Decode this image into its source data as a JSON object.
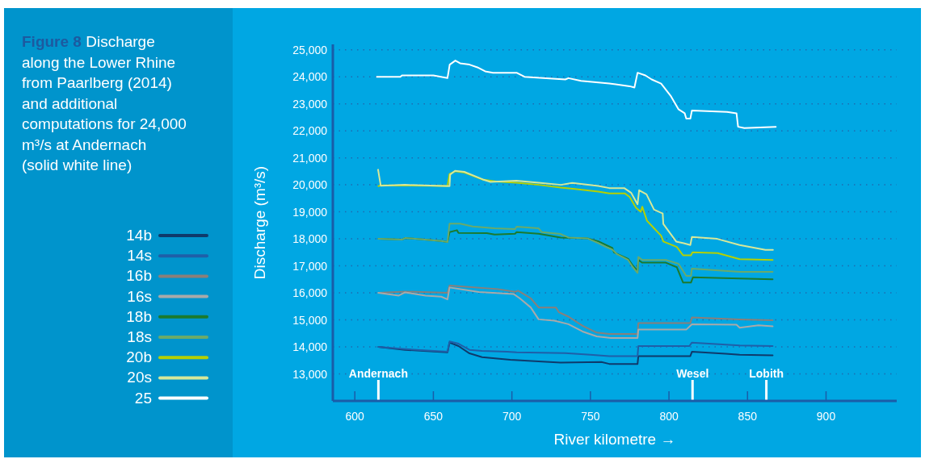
{
  "chart_data": {
    "type": "line",
    "title": "Figure 8",
    "subtitle": "Discharge along the Lower Rhine from Paarlberg (2014) and additional computations for 24,000 m³/s at Andernach (solid white line)",
    "xlabel": "River kilometre →",
    "ylabel": "Discharge (m³/s)",
    "xlim": [
      586,
      945
    ],
    "ylim": [
      12000,
      25200
    ],
    "xticks": [
      600,
      650,
      700,
      750,
      800,
      850,
      900
    ],
    "yticks": [
      {
        "value": 13000,
        "label": "13,000"
      },
      {
        "value": 14000,
        "label": "14,000"
      },
      {
        "value": 15000,
        "label": "15,000"
      },
      {
        "value": 16000,
        "label": "16,000"
      },
      {
        "value": 17000,
        "label": "17,000"
      },
      {
        "value": 18000,
        "label": "18,000"
      },
      {
        "value": 19000,
        "label": "19,000"
      },
      {
        "value": 20000,
        "label": "20,000"
      },
      {
        "value": 21000,
        "label": "21,000"
      },
      {
        "value": 22000,
        "label": "22,000"
      },
      {
        "value": 23000,
        "label": "23,000"
      },
      {
        "value": 24000,
        "label": "24,000"
      },
      {
        "value": 25000,
        "label": "25,000"
      }
    ],
    "grid": "y",
    "legend": "left",
    "line_style": "solid",
    "marker": "none",
    "ref_lines": [
      {
        "axis": "x",
        "value": 615,
        "label": "Andernach",
        "color": "#ffffff"
      },
      {
        "axis": "x",
        "value": 815,
        "label": "Wesel",
        "color": "#ffffff"
      },
      {
        "axis": "x",
        "value": 862,
        "label": "Lobith",
        "color": "#ffffff"
      }
    ],
    "series": [
      {
        "name": "14b",
        "color": "#0f3a6b",
        "x": [
          615,
          632,
          659,
          660.3,
          666,
          673,
          681,
          699,
          717,
          731,
          757,
          762,
          780,
          780.5,
          813.6,
          814.6,
          836,
          845,
          866
        ],
        "values": [
          14000,
          13890,
          13800,
          14160,
          14030,
          13760,
          13620,
          13520,
          13460,
          13420,
          13440,
          13370,
          13370,
          13660,
          13660,
          13820,
          13750,
          13710,
          13690
        ]
      },
      {
        "name": "14s",
        "color": "#1f5fa8",
        "x": [
          615,
          632,
          659,
          660.3,
          666,
          673,
          681,
          697,
          703,
          734,
          750,
          762,
          780,
          780.5,
          813,
          814.6,
          845,
          866
        ],
        "values": [
          14000,
          13920,
          13820,
          14200,
          14120,
          13890,
          13850,
          13820,
          13800,
          13770,
          13710,
          13660,
          13660,
          14030,
          14030,
          14160,
          14050,
          14030
        ]
      },
      {
        "name": "16b",
        "color": "#8a7f7a",
        "x": [
          615,
          632,
          659,
          660.3,
          691,
          702,
          704,
          712,
          717,
          728,
          730,
          736,
          745,
          754,
          762,
          780,
          780.5,
          813.6,
          814.6,
          845,
          866
        ],
        "values": [
          16000,
          16050,
          16000,
          16270,
          16140,
          16040,
          16080,
          15800,
          15460,
          15460,
          15280,
          15120,
          14780,
          14530,
          14480,
          14480,
          14880,
          14880,
          15090,
          15020,
          14990
        ]
      },
      {
        "name": "16s",
        "color": "#a9a9a9",
        "x": [
          615,
          628,
          632,
          645,
          655,
          659,
          660.3,
          679,
          701,
          705,
          712,
          717,
          727,
          736,
          745,
          754,
          763,
          780,
          780.5,
          811,
          814.6,
          843,
          845,
          857,
          866
        ],
        "values": [
          16000,
          15900,
          16020,
          15900,
          15860,
          15760,
          16200,
          16030,
          15960,
          15800,
          15460,
          15020,
          14970,
          14840,
          14570,
          14390,
          14330,
          14330,
          14640,
          14640,
          14840,
          14820,
          14710,
          14800,
          14760
        ]
      },
      {
        "name": "18b",
        "color": "#1b7a2e",
        "x": [
          615,
          630,
          632,
          643,
          655,
          659,
          660.3,
          665,
          666,
          684,
          689,
          702,
          703,
          717,
          731,
          748,
          755,
          764,
          765,
          774,
          777,
          780,
          780.5,
          783,
          798,
          805,
          809,
          814,
          815.3,
          845,
          866
        ],
        "values": [
          18000,
          17970,
          18030,
          17980,
          17920,
          17880,
          18250,
          18320,
          18220,
          18210,
          18160,
          18190,
          18250,
          18190,
          18050,
          18020,
          17910,
          17660,
          17500,
          17260,
          17010,
          16810,
          17220,
          17120,
          17120,
          16950,
          16380,
          16380,
          16580,
          16530,
          16500
        ]
      },
      {
        "name": "18s",
        "color": "#6aaa6a",
        "x": [
          615,
          630,
          632,
          643,
          655,
          659,
          660.3,
          667,
          675,
          689,
          702,
          703,
          717,
          719,
          731,
          736,
          748,
          755,
          760,
          764,
          767,
          774,
          777,
          780,
          780.5,
          783,
          798,
          806,
          811,
          814,
          814.6,
          845,
          866
        ],
        "values": [
          18000,
          17970,
          18030,
          17980,
          17920,
          17880,
          18560,
          18560,
          18460,
          18390,
          18360,
          18450,
          18390,
          18250,
          18180,
          18050,
          18020,
          17840,
          17700,
          17600,
          17430,
          17220,
          16950,
          16740,
          17330,
          17220,
          17220,
          17080,
          16630,
          16630,
          16900,
          16780,
          16780
        ]
      },
      {
        "name": "20b",
        "color": "#b5d000",
        "x": [
          615,
          616.5,
          659,
          660.3,
          664,
          670,
          681,
          690,
          703,
          717,
          731,
          740,
          755,
          762,
          772,
          775,
          779,
          782,
          783,
          786,
          790.5,
          795,
          796.4,
          805,
          809,
          814,
          815,
          831,
          845,
          866
        ],
        "values": [
          19950,
          19980,
          19960,
          20400,
          20500,
          20450,
          20200,
          20120,
          20080,
          20000,
          19900,
          19850,
          19750,
          19680,
          19680,
          19550,
          19150,
          19000,
          19190,
          18670,
          18390,
          18120,
          17900,
          17700,
          17390,
          17390,
          17500,
          17470,
          17250,
          17220
        ]
      },
      {
        "name": "20s",
        "color": "#d6e89a",
        "x": [
          614.8,
          616.5,
          632,
          660.3,
          660.7,
          663.8,
          669.7,
          681.5,
          686.3,
          702.9,
          717,
          731.3,
          738.4,
          755,
          762,
          771.5,
          776,
          780,
          781,
          785.7,
          790.5,
          796,
          796.4,
          804.6,
          809.4,
          813.6,
          814.6,
          830.7,
          845,
          861.4,
          866.2
        ],
        "values": [
          20560,
          19970,
          20000,
          19950,
          20380,
          20520,
          20480,
          20200,
          20110,
          20150,
          20080,
          20000,
          20070,
          19960,
          19880,
          19880,
          19700,
          19280,
          19800,
          19650,
          19080,
          18940,
          18550,
          17900,
          17840,
          17770,
          18070,
          18000,
          17770,
          17590,
          17590
        ]
      },
      {
        "name": "25",
        "color": "#ffffff",
        "x": [
          614,
          629,
          630,
          650,
          659,
          660.4,
          664,
          667,
          673,
          678,
          683,
          688,
          693,
          703,
          708,
          734,
          736,
          744,
          762,
          775,
          778,
          780,
          785,
          789,
          795,
          801,
          806,
          810,
          811,
          813.6,
          814.6,
          837,
          843,
          844,
          848,
          868
        ],
        "values": [
          24000,
          24000,
          24050,
          24050,
          23950,
          24450,
          24600,
          24500,
          24450,
          24350,
          24200,
          24150,
          24150,
          24150,
          24000,
          23900,
          23950,
          23850,
          23750,
          23650,
          23600,
          24150,
          24050,
          23900,
          23750,
          23300,
          22800,
          22650,
          22450,
          22450,
          22750,
          22700,
          22650,
          22150,
          22100,
          22150
        ]
      }
    ]
  }
}
